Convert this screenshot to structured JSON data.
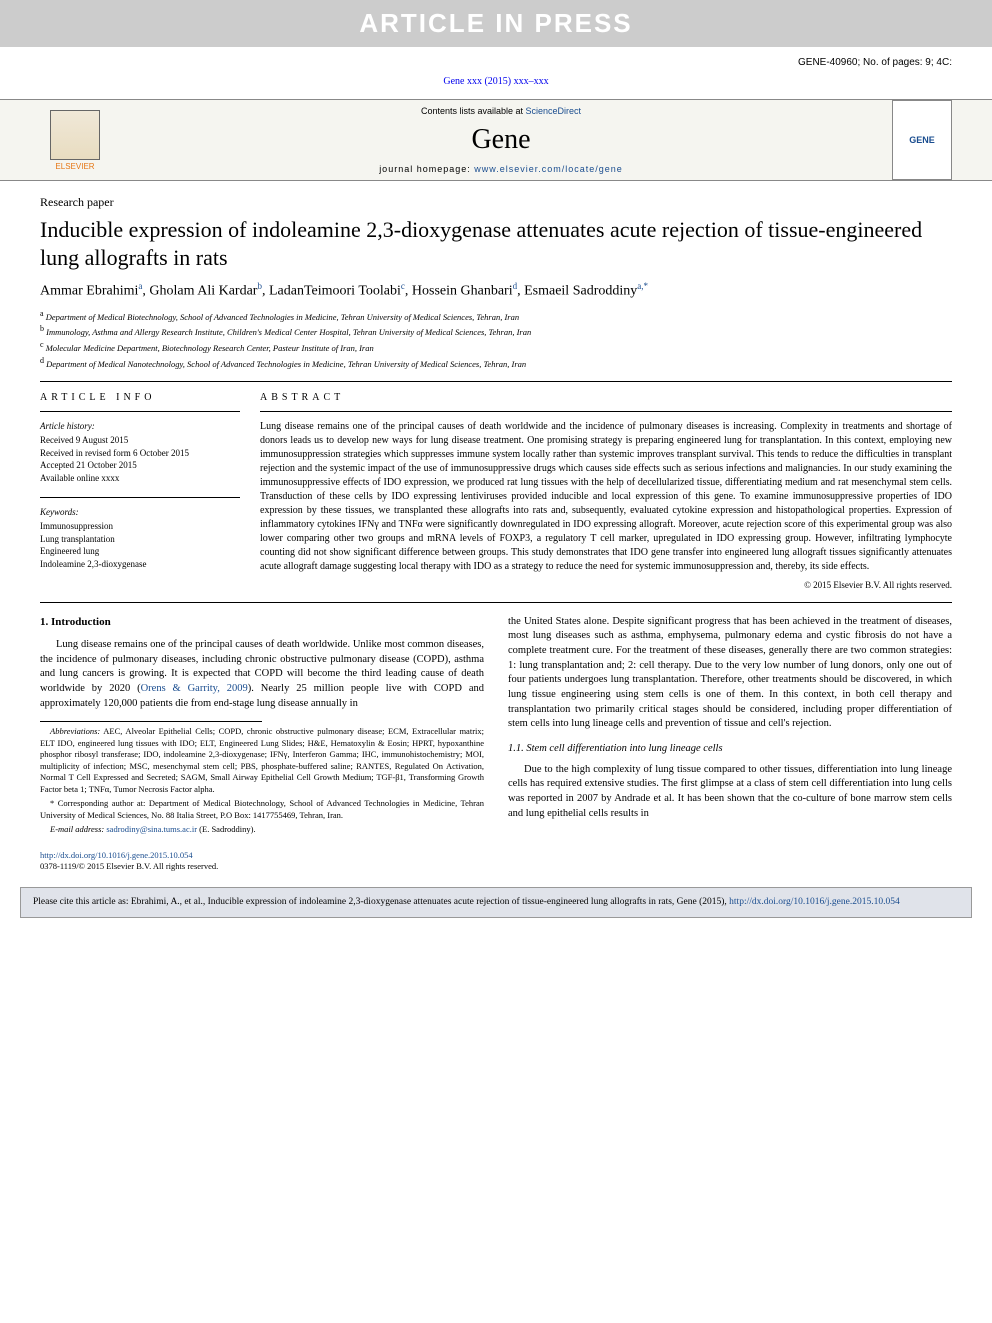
{
  "banner": {
    "text": "ARTICLE IN PRESS"
  },
  "header_info": {
    "line": "GENE-40960; No. of pages: 9; 4C:"
  },
  "journal_ref": {
    "text": "Gene xxx (2015) xxx–xxx"
  },
  "journal_header": {
    "contents_prefix": "Contents lists available at ",
    "contents_link": "ScienceDirect",
    "journal_name": "Gene",
    "homepage_prefix": "journal homepage: ",
    "homepage_link": "www.elsevier.com/locate/gene",
    "elsevier_name": "ELSEVIER",
    "cover_label": "GENE"
  },
  "paper": {
    "type": "Research paper",
    "title": "Inducible expression of indoleamine 2,3-dioxygenase attenuates acute rejection of tissue-engineered lung allografts in rats"
  },
  "authors": {
    "a1_name": "Ammar Ebrahimi",
    "a1_sup": "a",
    "a2_name": "Gholam Ali Kardar",
    "a2_sup": "b",
    "a3_name": "LadanTeimoori Toolabi",
    "a3_sup": "c",
    "a4_name": "Hossein Ghanbari",
    "a4_sup": "d",
    "a5_name": "Esmaeil Sadroddiny",
    "a5_sup": "a,",
    "a5_star": "*"
  },
  "affiliations": {
    "a": "Department of Medical Biotechnology, School of Advanced Technologies in Medicine, Tehran University of Medical Sciences, Tehran, Iran",
    "b": "Immunology, Asthma and Allergy Research Institute, Children's Medical Center Hospital, Tehran University of Medical Sciences, Tehran, Iran",
    "c": "Molecular Medicine Department, Biotechnology Research Center, Pasteur Institute of Iran, Iran",
    "d": "Department of Medical Nanotechnology, School of Advanced Technologies in Medicine, Tehran University of Medical Sciences, Tehran, Iran"
  },
  "article_info": {
    "heading": "article info",
    "history_label": "Article history:",
    "received": "Received 9 August 2015",
    "revised": "Received in revised form 6 October 2015",
    "accepted": "Accepted 21 October 2015",
    "online": "Available online xxxx",
    "keywords_label": "Keywords:",
    "kw1": "Immunosuppression",
    "kw2": "Lung transplantation",
    "kw3": "Engineered lung",
    "kw4": "Indoleamine 2,3-dioxygenase"
  },
  "abstract": {
    "heading": "abstract",
    "text": "Lung disease remains one of the principal causes of death worldwide and the incidence of pulmonary diseases is increasing. Complexity in treatments and shortage of donors leads us to develop new ways for lung disease treatment. One promising strategy is preparing engineered lung for transplantation. In this context, employing new immunosuppression strategies which suppresses immune system locally rather than systemic improves transplant survival. This tends to reduce the difficulties in transplant rejection and the systemic impact of the use of immunosuppressive drugs which causes side effects such as serious infections and malignancies. In our study examining the immunosuppressive effects of IDO expression, we produced rat lung tissues with the help of decellularized tissue, differentiating medium and rat mesenchymal stem cells. Transduction of these cells by IDO expressing lentiviruses provided inducible and local expression of this gene. To examine immunosuppressive properties of IDO expression by these tissues, we transplanted these allografts into rats and, subsequently, evaluated cytokine expression and histopathological properties. Expression of inflammatory cytokines IFNγ and TNFα were significantly downregulated in IDO expressing allograft. Moreover, acute rejection score of this experimental group was also lower comparing other two groups and mRNA levels of FOXP3, a regulatory T cell marker, upregulated in IDO expressing group. However, infiltrating lymphocyte counting did not show significant difference between groups. This study demonstrates that IDO gene transfer into engineered lung allograft tissues significantly attenuates acute allograft damage suggesting local therapy with IDO as a strategy to reduce the need for systemic immunosuppression and, thereby, its side effects.",
    "copyright": "© 2015 Elsevier B.V. All rights reserved."
  },
  "body": {
    "intro_heading": "1. Introduction",
    "intro_p1a": "Lung disease remains one of the principal causes of death worldwide. Unlike most common diseases, the incidence of pulmonary diseases, including chronic obstructive pulmonary disease (COPD), asthma and lung cancers is growing. It is expected that COPD will become the third leading cause of death worldwide by 2020 (",
    "intro_p1_ref": "Orens & Garrity, 2009",
    "intro_p1b": "). Nearly 25 million people live with COPD and approximately 120,000 patients die from end-stage lung disease annually in",
    "intro_p2": "the United States alone. Despite significant progress that has been achieved in the treatment of diseases, most lung diseases such as asthma, emphysema, pulmonary edema and cystic fibrosis do not have a complete treatment cure. For the treatment of these diseases, generally there are two common strategies: 1: lung transplantation and; 2: cell therapy. Due to the very low number of lung donors, only one out of four patients undergoes lung transplantation. Therefore, other treatments should be discovered, in which lung tissue engineering using stem cells is one of them. In this context, in both cell therapy and transplantation two primarily critical stages should be considered, including proper differentiation of stem cells into lung lineage cells and prevention of tissue and cell's rejection.",
    "sub11_heading": "1.1. Stem cell differentiation into lung lineage cells",
    "sub11_p": "Due to the high complexity of lung tissue compared to other tissues, differentiation into lung lineage cells has required extensive studies. The first glimpse at a class of stem cell differentiation into lung cells was reported in 2007 by Andrade et al. It has been shown that the co-culture of bone marrow stem cells and lung epithelial cells results in"
  },
  "footnotes": {
    "abbrev_label": "Abbreviations:",
    "abbrev_text": " AEC, Alveolar Epithelial Cells; COPD, chronic obstructive pulmonary disease; ECM, Extracellular matrix; ELT IDO, engineered lung tissues with IDO; ELT, Engineered Lung Slides; H&E, Hematoxylin & Eosin; HPRT, hypoxanthine phosphor ribosyl transferase; IDO, indoleamine 2,3-dioxygenase; IFNγ, Interferon Gamma; IHC, immunohistochemistry; MOI, multiplicity of infection; MSC, mesenchymal stem cell; PBS, phosphate-buffered saline; RANTES, Regulated On Activation, Normal T Cell Expressed and Secreted; SAGM, Small Airway Epithelial Cell Growth Medium; TGF-β1, Transforming Growth Factor beta 1; TNFα, Tumor Necrosis Factor alpha.",
    "corr_star": "*",
    "corr_text": " Corresponding author at: Department of Medical Biotechnology, School of Advanced Technologies in Medicine, Tehran University of Medical Sciences, No. 88 Italia Street, P.O Box: 1417755469, Tehran, Iran.",
    "email_label": "E-mail address: ",
    "email_link": "sadrodiny@sina.tums.ac.ir",
    "email_suffix": " (E. Sadroddiny)."
  },
  "doi": {
    "link": "http://dx.doi.org/10.1016/j.gene.2015.10.054",
    "issn_line": "0378-1119/© 2015 Elsevier B.V. All rights reserved."
  },
  "cite_box": {
    "prefix": "Please cite this article as: Ebrahimi, A., et al., Inducible expression of indoleamine 2,3-dioxygenase attenuates acute rejection of tissue-engineered lung allografts in rats, Gene (2015), ",
    "link": "http://dx.doi.org/10.1016/j.gene.2015.10.054"
  },
  "colors": {
    "link": "#1a4d8f",
    "banner_bg": "#cccccc",
    "banner_text": "#ffffff",
    "elsevier_orange": "#e67817",
    "cite_bg": "#e0e3ea"
  }
}
